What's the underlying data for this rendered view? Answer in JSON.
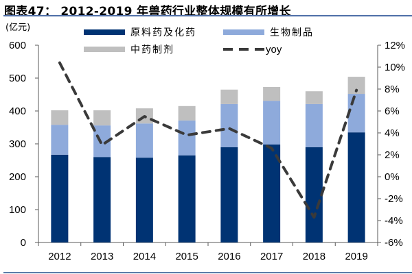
{
  "title": "图表47：  2012-2019 年兽药行业整体规模有所增长",
  "colors": {
    "raw_chemical": "#003373",
    "biologics": "#8eaadb",
    "tcm": "#bfbfbf",
    "yoy": "#3a3a3a",
    "rule": "#4f6fa8"
  },
  "chart_data": {
    "type": "bar",
    "stacked": true,
    "title": "2012-2019 年兽药行业整体规模有所增长",
    "ylabel": "(亿元)",
    "y2label": "yoy",
    "categories": [
      "2012",
      "2013",
      "2014",
      "2015",
      "2016",
      "2017",
      "2018",
      "2019"
    ],
    "series": [
      {
        "name": "原料药及化药",
        "type": "bar",
        "values": [
          267,
          260,
          258,
          265,
          290,
          298,
          290,
          335
        ]
      },
      {
        "name": "生物制品",
        "type": "bar",
        "values": [
          91,
          96,
          104,
          106,
          131,
          133,
          131,
          117
        ]
      },
      {
        "name": "中药制剂",
        "type": "bar",
        "values": [
          44,
          46,
          46,
          44,
          44,
          42,
          39,
          52
        ]
      },
      {
        "name": "yoy",
        "type": "line",
        "axis": "right",
        "style": "dashed",
        "values": [
          10.4,
          2.9,
          5.5,
          3.8,
          4.4,
          2.6,
          -3.7,
          7.9
        ]
      }
    ],
    "ylim": [
      0,
      600
    ],
    "y_ticks": [
      "0",
      "100",
      "200",
      "300",
      "400",
      "500",
      "600"
    ],
    "y2lim": [
      -6,
      12
    ],
    "y2_ticks": [
      "-6%",
      "-4%",
      "-2%",
      "0%",
      "2%",
      "4%",
      "6%",
      "8%",
      "10%",
      "12%"
    ],
    "legend": {
      "position": "top",
      "entries": [
        "原料药及化药",
        "生物制品",
        "中药制剂",
        "yoy"
      ]
    },
    "grid": false
  }
}
